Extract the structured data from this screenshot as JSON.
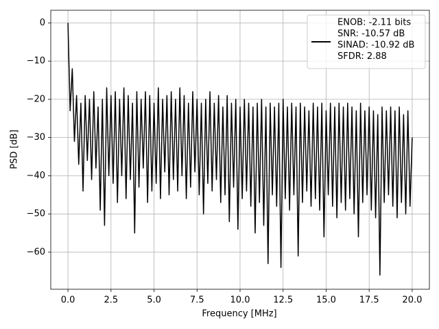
{
  "chart_data": {
    "type": "line",
    "xlabel": "Frequency [MHz]",
    "ylabel": "PSD [dB]",
    "xlim": [
      -1,
      21
    ],
    "ylim": [
      -69.7,
      3.3
    ],
    "xticks": [
      {
        "value": 0,
        "label": "0.0"
      },
      2.5,
      {
        "value": 5,
        "label": "5.0"
      },
      7.5,
      {
        "value": 10,
        "label": "10.0"
      },
      12.5,
      {
        "value": 15,
        "label": "15.0"
      },
      17.5,
      {
        "value": 20,
        "label": "20.0"
      }
    ],
    "yticks": [
      {
        "value": -60,
        "label": "−60"
      },
      {
        "value": -50,
        "label": "−50"
      },
      {
        "value": -40,
        "label": "−40"
      },
      {
        "value": -30,
        "label": "−30"
      },
      {
        "value": -20,
        "label": "−20"
      },
      {
        "value": -10,
        "label": "−10"
      },
      0
    ],
    "grid": true,
    "legend": "upper right",
    "x": [
      0,
      0.125,
      0.25,
      0.375,
      0.5,
      0.625,
      0.75,
      0.875,
      1,
      1.125,
      1.25,
      1.375,
      1.5,
      1.625,
      1.75,
      1.875,
      2,
      2.125,
      2.25,
      2.375,
      2.5,
      2.625,
      2.75,
      2.875,
      3,
      3.125,
      3.25,
      3.375,
      3.5,
      3.625,
      3.75,
      3.875,
      4,
      4.125,
      4.25,
      4.375,
      4.5,
      4.625,
      4.75,
      4.875,
      5,
      5.125,
      5.25,
      5.375,
      5.5,
      5.625,
      5.75,
      5.875,
      6,
      6.125,
      6.25,
      6.375,
      6.5,
      6.625,
      6.75,
      6.875,
      7,
      7.125,
      7.25,
      7.375,
      7.5,
      7.625,
      7.75,
      7.875,
      8,
      8.125,
      8.25,
      8.375,
      8.5,
      8.625,
      8.75,
      8.875,
      9,
      9.125,
      9.25,
      9.375,
      9.5,
      9.625,
      9.75,
      9.875,
      10,
      10.125,
      10.25,
      10.375,
      10.5,
      10.625,
      10.75,
      10.875,
      11,
      11.125,
      11.25,
      11.375,
      11.5,
      11.625,
      11.75,
      11.875,
      12,
      12.125,
      12.25,
      12.375,
      12.5,
      12.625,
      12.75,
      12.875,
      13,
      13.125,
      13.25,
      13.375,
      13.5,
      13.625,
      13.75,
      13.875,
      14,
      14.125,
      14.25,
      14.375,
      14.5,
      14.625,
      14.75,
      14.875,
      15,
      15.125,
      15.25,
      15.375,
      15.5,
      15.625,
      15.75,
      15.875,
      16,
      16.125,
      16.25,
      16.375,
      16.5,
      16.625,
      16.75,
      16.875,
      17,
      17.125,
      17.25,
      17.375,
      17.5,
      17.625,
      17.75,
      17.875,
      18,
      18.125,
      18.25,
      18.375,
      18.5,
      18.625,
      18.75,
      18.875,
      19,
      19.125,
      19.25,
      19.375,
      19.5,
      19.625,
      19.75,
      19.875,
      20
    ],
    "series": [
      {
        "name": [
          "ENOB: -2.11 bits",
          "SNR: -10.57 dB",
          "SINAD: -10.92 dB",
          "SFDR: 2.88"
        ],
        "color": "#000000",
        "values": [
          0,
          -23,
          -12,
          -31,
          -19,
          -37,
          -21,
          -44,
          -19,
          -36,
          -20,
          -41,
          -18,
          -38,
          -22,
          -49,
          -20,
          -53,
          -17,
          -40,
          -19,
          -42,
          -18,
          -47,
          -20,
          -40,
          -17,
          -46,
          -19,
          -41,
          -21,
          -55,
          -18,
          -43,
          -20,
          -38,
          -18,
          -47,
          -19,
          -44,
          -21,
          -42,
          -17,
          -46,
          -20,
          -39,
          -19,
          -45,
          -18,
          -41,
          -20,
          -44,
          -17,
          -40,
          -19,
          -46,
          -21,
          -43,
          -18,
          -39,
          -20,
          -45,
          -21,
          -50,
          -20,
          -42,
          -18,
          -44,
          -21,
          -41,
          -19,
          -47,
          -22,
          -45,
          -19,
          -52,
          -21,
          -43,
          -20,
          -54,
          -22,
          -46,
          -20,
          -44,
          -21,
          -48,
          -22,
          -55,
          -21,
          -47,
          -20,
          -53,
          -22,
          -63,
          -21,
          -45,
          -22,
          -48,
          -21,
          -64,
          -20,
          -46,
          -22,
          -49,
          -21,
          -45,
          -22,
          -61,
          -21,
          -47,
          -22,
          -44,
          -23,
          -48,
          -21,
          -46,
          -22,
          -49,
          -21,
          -56,
          -23,
          -45,
          -21,
          -48,
          -22,
          -51,
          -21,
          -47,
          -22,
          -49,
          -21,
          -46,
          -22,
          -50,
          -23,
          -56,
          -21,
          -47,
          -23,
          -45,
          -22,
          -49,
          -23,
          -51,
          -24,
          -66,
          -22,
          -47,
          -23,
          -45,
          -22,
          -48,
          -23,
          -51,
          -22,
          -47,
          -24,
          -50,
          -23,
          -48,
          -30
        ]
      }
    ]
  }
}
